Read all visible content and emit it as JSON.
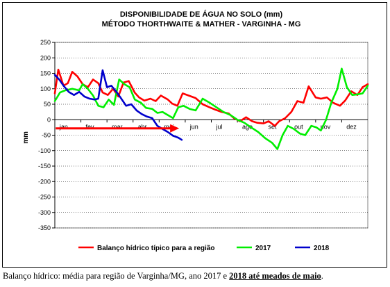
{
  "chart_data": {
    "type": "line",
    "title_lines": [
      "DISPONIBILIDADE DE ÁGUA NO SOLO (mm)",
      "MÉTODO THORTHWAITE & MATHER - VARGINHA - MG"
    ],
    "ylabel": "mm",
    "ylim": [
      -350,
      250
    ],
    "yticks": [
      -350,
      -300,
      -250,
      -200,
      -150,
      -100,
      -50,
      0,
      50,
      100,
      150,
      200,
      250
    ],
    "x_domain": [
      0,
      36
    ],
    "month_labels": [
      "jan",
      "fev",
      "mar",
      "abr",
      "mai",
      "jun",
      "jul",
      "ago",
      "set",
      "out",
      "nov",
      "dez"
    ],
    "grid": true,
    "legend_position": "bottom",
    "series": [
      {
        "name": "Balanço hídrico típico para a região",
        "color": "#ff0000",
        "x": [
          0,
          0.4,
          1,
          1.5,
          2,
          2.6,
          3.2,
          3.8,
          4.4,
          5,
          5.5,
          6.1,
          6.7,
          7.3,
          7.9,
          8.5,
          9.2,
          9.7,
          10.3,
          11.0,
          11.6,
          12.2,
          13.0,
          13.5,
          14.1,
          14.7,
          15.4,
          16.2,
          17.0,
          17.8,
          18.5,
          19.2,
          20.0,
          20.6,
          21.3,
          22.0,
          22.7,
          23.3,
          24.0,
          24.6,
          25.3,
          25.8,
          26.5,
          27.2,
          27.9,
          28.6,
          29.2,
          30.0,
          30.6,
          31.3,
          32.0,
          32.8,
          33.4,
          34.1,
          34.8,
          35.4,
          36
        ],
        "y": [
          85,
          162,
          110,
          118,
          155,
          140,
          115,
          105,
          130,
          118,
          88,
          80,
          100,
          75,
          120,
          125,
          87,
          72,
          62,
          68,
          60,
          78,
          65,
          52,
          45,
          85,
          78,
          70,
          50,
          40,
          32,
          25,
          20,
          5,
          -5,
          8,
          -5,
          -10,
          -12,
          -5,
          -20,
          -5,
          5,
          25,
          60,
          55,
          108,
          72,
          68,
          72,
          55,
          45,
          62,
          92,
          80,
          105,
          115
        ]
      },
      {
        "name": "2017",
        "color": "#00ee00",
        "x": [
          0,
          0.6,
          1.2,
          2.0,
          2.8,
          3.2,
          3.8,
          4.4,
          5.0,
          5.6,
          6.2,
          6.8,
          7.4,
          8.0,
          8.6,
          9.2,
          9.9,
          10.5,
          11.2,
          11.8,
          12.4,
          13.0,
          13.6,
          14.2,
          14.8,
          15.5,
          16.2,
          17.0,
          17.8,
          18.6,
          19.4,
          20.2,
          21.0,
          21.8,
          22.6,
          23.4,
          24.2,
          25.0,
          25.6,
          26.2,
          26.8,
          27.5,
          28.2,
          28.8,
          29.5,
          30.1,
          30.6,
          31.2,
          31.8,
          32.5,
          33.0,
          33.6,
          34.2,
          34.8,
          35.4,
          36
        ],
        "y": [
          60,
          88,
          95,
          100,
          95,
          115,
          100,
          78,
          45,
          40,
          65,
          48,
          130,
          115,
          105,
          65,
          55,
          38,
          35,
          22,
          25,
          15,
          5,
          40,
          45,
          35,
          30,
          68,
          55,
          40,
          25,
          15,
          0,
          -10,
          -25,
          -40,
          -60,
          -75,
          -95,
          -50,
          -20,
          -30,
          -45,
          -50,
          -20,
          -25,
          -35,
          0,
          55,
          100,
          165,
          105,
          80,
          82,
          85,
          110
        ]
      },
      {
        "name": "2018",
        "color": "#0000cc",
        "x": [
          0,
          0.5,
          1.0,
          1.6,
          2.2,
          2.8,
          3.4,
          4.0,
          4.6,
          5.0,
          5.5,
          6.0,
          6.5,
          7.1,
          7.6,
          8.2,
          8.8,
          9.4,
          10.0,
          10.6,
          11.2,
          11.8,
          12.4,
          13.0,
          13.6,
          14.2,
          14.6
        ],
        "y": [
          145,
          130,
          110,
          90,
          80,
          90,
          75,
          68,
          65,
          68,
          160,
          105,
          110,
          90,
          70,
          45,
          50,
          30,
          18,
          10,
          5,
          -20,
          -30,
          -40,
          -52,
          -58,
          -65
        ]
      }
    ],
    "annotation": "arrow"
  },
  "caption": {
    "prefix": "Balanço hídrico: média para região de Varginha/MG, ano 2017 e ",
    "emphasis": "2018 até meados de maio",
    "suffix": "."
  }
}
